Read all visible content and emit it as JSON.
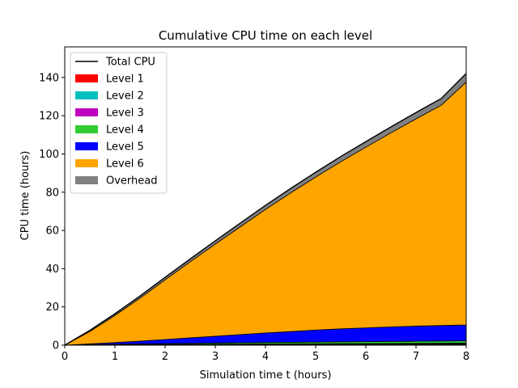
{
  "chart_data": {
    "type": "area",
    "title": "Cumulative CPU time on each level",
    "xlabel": "Simulation time t (hours)",
    "ylabel": "CPU time (hours)",
    "xlim": [
      0,
      8
    ],
    "ylim": [
      0,
      156
    ],
    "xticks": [
      0,
      1,
      2,
      3,
      4,
      5,
      6,
      7,
      8
    ],
    "yticks": [
      0,
      20,
      40,
      60,
      80,
      100,
      120,
      140
    ],
    "grid": false,
    "legend_position": "top-left",
    "x": [
      0,
      0.5,
      1,
      1.5,
      2,
      2.5,
      3,
      3.5,
      4,
      4.5,
      5,
      5.5,
      6,
      6.5,
      7,
      7.5,
      8
    ],
    "series": [
      {
        "name": "Level 1",
        "color": "#ff0000",
        "values": [
          0,
          0.05,
          0.08,
          0.1,
          0.12,
          0.14,
          0.16,
          0.18,
          0.2,
          0.22,
          0.24,
          0.26,
          0.28,
          0.3,
          0.32,
          0.34,
          0.36
        ]
      },
      {
        "name": "Level 2",
        "color": "#00c0c0",
        "values": [
          0,
          0.05,
          0.08,
          0.1,
          0.12,
          0.14,
          0.16,
          0.18,
          0.2,
          0.22,
          0.24,
          0.26,
          0.28,
          0.3,
          0.32,
          0.34,
          0.36
        ]
      },
      {
        "name": "Level 3",
        "color": "#bf00bf",
        "values": [
          0,
          0.05,
          0.08,
          0.1,
          0.12,
          0.14,
          0.16,
          0.18,
          0.2,
          0.22,
          0.24,
          0.26,
          0.28,
          0.3,
          0.32,
          0.34,
          0.36
        ]
      },
      {
        "name": "Level 4",
        "color": "#33cc33",
        "values": [
          0,
          0.1,
          0.2,
          0.3,
          0.4,
          0.5,
          0.6,
          0.7,
          0.8,
          0.85,
          0.9,
          0.95,
          1.0,
          1.05,
          1.1,
          1.15,
          1.2
        ]
      },
      {
        "name": "Level 5",
        "color": "#0000ff",
        "values": [
          0,
          0.4,
          0.9,
          1.5,
          2.2,
          2.9,
          3.6,
          4.3,
          5.0,
          5.6,
          6.3,
          6.8,
          7.2,
          7.6,
          7.9,
          8.1,
          8.3
        ]
      },
      {
        "name": "Level 6",
        "color": "#ffa500",
        "values": [
          0,
          6.5,
          14.2,
          22.5,
          31.2,
          39.8,
          48.2,
          56.4,
          64.6,
          72.5,
          80.0,
          87.4,
          94.5,
          101.5,
          108.4,
          115.2,
          127.0
        ]
      },
      {
        "name": "Overhead",
        "color": "#808080",
        "values": [
          0,
          0.6,
          0.9,
          1.1,
          1.3,
          1.5,
          1.7,
          1.9,
          2.1,
          2.3,
          2.5,
          2.7,
          2.9,
          3.1,
          3.3,
          3.5,
          4.5
        ]
      }
    ],
    "total_line": {
      "name": "Total CPU",
      "color": "#000000"
    }
  }
}
